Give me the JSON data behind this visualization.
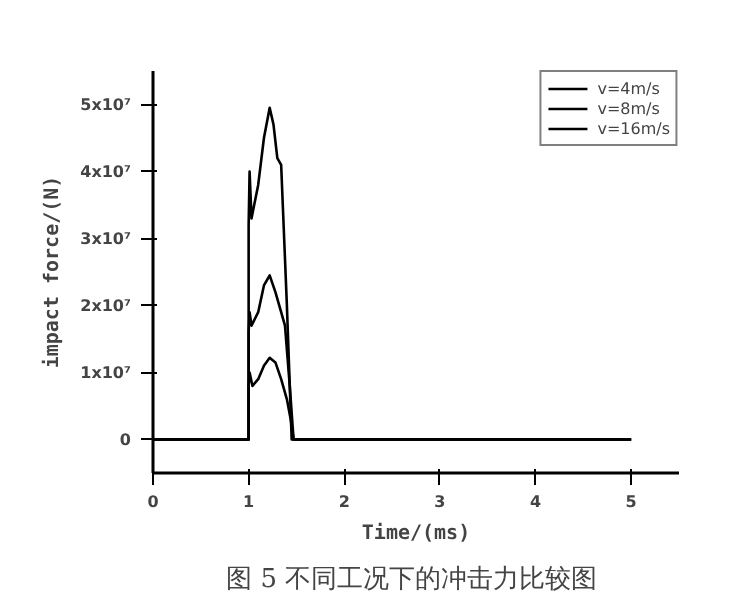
{
  "chart_data": {
    "type": "line",
    "xlabel": "Time/(ms)",
    "ylabel": "impact force/(N)",
    "annotations": [
      "图 5  不同工况下的冲击力比较图"
    ],
    "xlim": [
      0,
      5.5
    ],
    "xticks": [
      0,
      1,
      2,
      3,
      4,
      5
    ],
    "ylim": [
      -5000000,
      55000000
    ],
    "yticks": [
      0,
      {
        "value": 10000000,
        "label": "1x10⁷"
      },
      {
        "value": 20000000,
        "label": "2x10⁷"
      },
      {
        "value": 30000000,
        "label": "3x10⁷"
      },
      {
        "value": 40000000,
        "label": "4x10⁷"
      },
      {
        "value": 50000000,
        "label": "5x10⁷"
      }
    ],
    "grid": false,
    "legend": "top right",
    "marker": "none",
    "line_style": "solid",
    "series": [
      {
        "name": "v=4m/s",
        "color": "#000000",
        "x": [
          0,
          1.0,
          1.0,
          1.01,
          1.04,
          1.1,
          1.16,
          1.22,
          1.28,
          1.34,
          1.4,
          1.44,
          1.47,
          5
        ],
        "values": [
          0,
          0,
          8000000,
          10000000,
          8000000,
          9000000,
          11000000,
          12200000,
          11500000,
          9000000,
          6000000,
          3000000,
          0,
          0
        ]
      },
      {
        "name": "v=8m/s",
        "color": "#000000",
        "x": [
          0,
          1.0,
          1.0,
          1.01,
          1.03,
          1.1,
          1.16,
          1.22,
          1.28,
          1.34,
          1.38,
          1.43,
          1.47,
          5
        ],
        "values": [
          0,
          0,
          16000000,
          19000000,
          17000000,
          19000000,
          23000000,
          24500000,
          22000000,
          19000000,
          17000000,
          8000000,
          0,
          0
        ]
      },
      {
        "name": "v=16m/s",
        "color": "#000000",
        "x": [
          0,
          1.0,
          1.0,
          1.01,
          1.03,
          1.1,
          1.16,
          1.22,
          1.26,
          1.3,
          1.34,
          1.4,
          1.45,
          5
        ],
        "values": [
          0,
          0,
          32000000,
          40000000,
          33000000,
          38000000,
          45000000,
          49500000,
          47000000,
          42000000,
          41000000,
          20000000,
          0,
          0
        ]
      }
    ]
  }
}
